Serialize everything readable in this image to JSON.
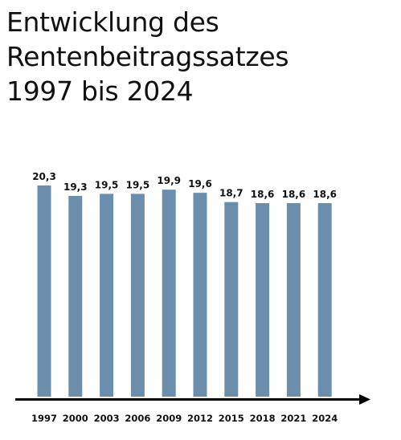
{
  "title_lines": [
    "Entwicklung des",
    "Rentenbeitragssatzes",
    "1997 bis 2024"
  ],
  "colors": {
    "bar": "#6b8eac",
    "axis": "#000000",
    "text": "#111111"
  },
  "chart_data": {
    "type": "bar",
    "title": "Entwicklung des Rentenbeitragssatzes 1997 bis 2024",
    "xlabel": "",
    "ylabel": "",
    "categories": [
      "1997",
      "2000",
      "2003",
      "2006",
      "2009",
      "2012",
      "2015",
      "2018",
      "2021",
      "2024"
    ],
    "values": [
      20.3,
      19.3,
      19.5,
      19.5,
      19.9,
      19.6,
      18.7,
      18.6,
      18.6,
      18.6
    ],
    "value_labels": [
      "20,3",
      "19,3",
      "19,5",
      "19,5",
      "19,9",
      "19,6",
      "18,7",
      "18,6",
      "18,6",
      "18,6"
    ],
    "ylim": [
      0,
      20.3
    ],
    "grid": false,
    "legend": "none"
  }
}
